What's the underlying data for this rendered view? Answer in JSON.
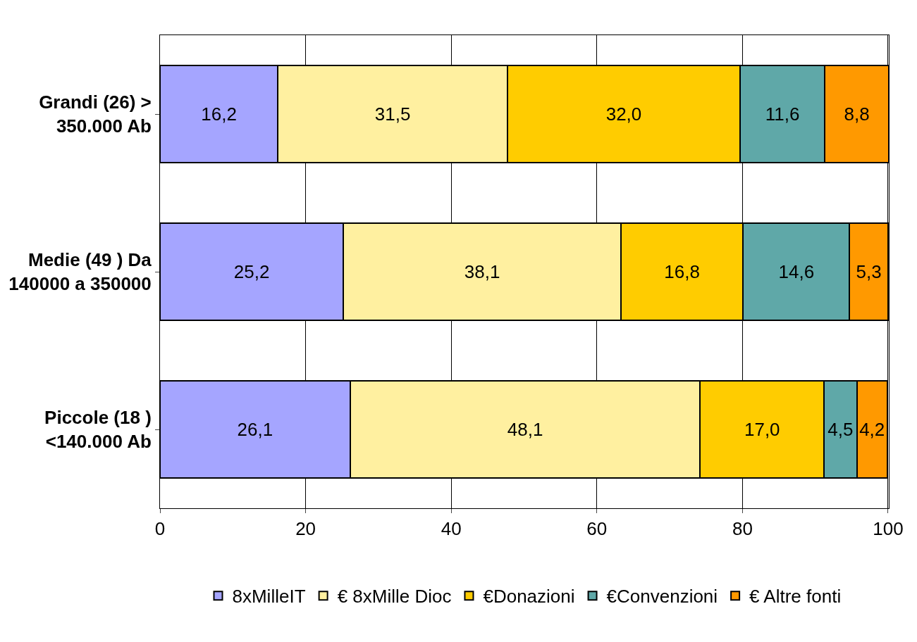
{
  "chart_data": {
    "type": "bar",
    "orientation": "horizontal",
    "stacked": true,
    "categories": [
      "Grandi (26) > 350.000 Ab",
      "Medie (49 ) Da 140000 a 350000",
      "Piccole (18 ) <140.000 Ab"
    ],
    "series": [
      {
        "name": "8xMilleIT",
        "color": "#a5a5ff",
        "values": [
          16.2,
          25.2,
          26.1
        ],
        "value_labels": [
          "16,2",
          "25,2",
          "26,1"
        ]
      },
      {
        "name": "€ 8xMille Dioc",
        "color": "#fff0a0",
        "values": [
          31.5,
          38.1,
          48.1
        ],
        "value_labels": [
          "31,5",
          "38,1",
          "48,1"
        ]
      },
      {
        "name": "€Donazioni",
        "color": "#ffcc00",
        "values": [
          32.0,
          16.8,
          17.0
        ],
        "value_labels": [
          "32,0",
          "16,8",
          "17,0"
        ]
      },
      {
        "name": "€Convenzioni",
        "color": "#5fa8a8",
        "values": [
          11.6,
          14.6,
          4.5
        ],
        "value_labels": [
          "11,6",
          "14,6",
          "4,5"
        ]
      },
      {
        "name": "€ Altre fonti",
        "color": "#ff9900",
        "values": [
          8.8,
          5.3,
          4.2
        ],
        "value_labels": [
          "8,8",
          "5,3",
          "4,2"
        ]
      }
    ],
    "xlim": [
      0,
      100.1
    ],
    "xticks": [
      0,
      20,
      40,
      60,
      80,
      100
    ],
    "grid": "x",
    "legend": "bottom"
  }
}
